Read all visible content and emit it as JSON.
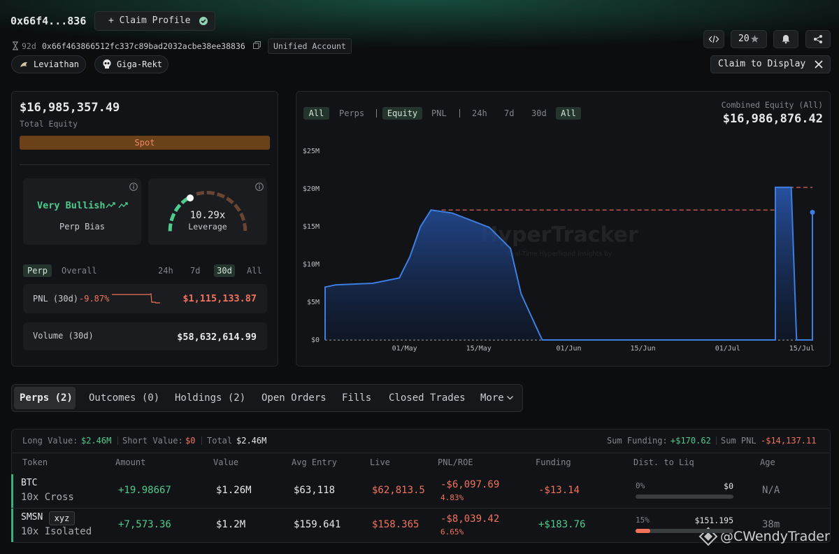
{
  "header": {
    "short_address": "0x66f4...836",
    "claim_profile": "+ Claim Profile",
    "age": "92d",
    "address": "0x66f463866512fc337c89bad2032acbe38ee38836",
    "account_type": "Unified Account",
    "badges": [
      "Leviathan",
      "Giga-Rekt"
    ],
    "star_count": "20",
    "claim_display": "Claim to Display"
  },
  "summary": {
    "total_equity": "$16,985,357.49",
    "total_equity_label": "Total Equity",
    "spot_label": "Spot",
    "bias": "Very Bullish",
    "bias_label": "Perp Bias",
    "leverage": "10.29x",
    "leverage_label": "Leverage",
    "scope_tabs": [
      "Perp",
      "Overall"
    ],
    "period_tabs": [
      "24h",
      "7d",
      "30d",
      "All"
    ],
    "pnl_label": "PNL (30d)",
    "pnl_pct": "-9.87%",
    "pnl_value": "$1,115,133.87",
    "volume_label": "Volume (30d)",
    "volume_value": "$58,632,614.99"
  },
  "equity_panel": {
    "filter_tabs": [
      "All",
      "Perps"
    ],
    "metric_tabs": [
      "Equity",
      "PNL"
    ],
    "period_tabs": [
      "24h",
      "7d",
      "30d",
      "All"
    ],
    "combined_label": "Combined Equity (All)",
    "combined_value": "$16,986,876.42",
    "watermark": "HyperTracker",
    "watermark_sub": "Real-Time Hyperliquid Insights by"
  },
  "chart_data": {
    "type": "area",
    "color": "#3d7ee0",
    "x": [
      "04-16",
      "04-16",
      "04-18",
      "04-25",
      "04-30",
      "05-02",
      "05-04",
      "05-06",
      "05-10",
      "05-17",
      "05-21",
      "05-23",
      "05-26",
      "05-27",
      "07-10",
      "07-10",
      "07-13",
      "07-14",
      "07-17",
      "07-17"
    ],
    "values": [
      0,
      7.0,
      7.3,
      7.5,
      8.2,
      11.0,
      15.0,
      17.2,
      16.8,
      14.9,
      12.1,
      6.1,
      1.5,
      0,
      0,
      20.2,
      20.2,
      0,
      0,
      16.9
    ],
    "xlim": [
      "04-16",
      "07-17"
    ],
    "xticks": [
      {
        "value": "05-01",
        "label": "01/May"
      },
      {
        "value": "05-15",
        "label": "15/May"
      },
      {
        "value": "06-01",
        "label": "01/Jun"
      },
      {
        "value": "06-15",
        "label": "15/Jun"
      },
      {
        "value": "07-01",
        "label": "01/Jul"
      },
      {
        "value": "07-15",
        "label": "15/Jul"
      }
    ],
    "ylim": [
      0,
      25
    ],
    "yticks": [
      {
        "value": 0,
        "label": "$0"
      },
      {
        "value": 5,
        "label": "$5M"
      },
      {
        "value": 10,
        "label": "$10M"
      },
      {
        "value": 15,
        "label": "$15M"
      },
      {
        "value": 20,
        "label": "$20M"
      },
      {
        "value": 25,
        "label": "$25M"
      }
    ],
    "grid": false,
    "reference_color": "#c0544a",
    "reference_lines": [
      {
        "value": 17.2,
        "from": "05-08",
        "to": "07-10"
      },
      {
        "value": 20.2,
        "from": "07-10",
        "to": "07-17"
      }
    ]
  },
  "tabs": [
    "Perps (2)",
    "Outcomes (0)",
    "Holdings (2)",
    "Open Orders",
    "Fills",
    "Closed Trades",
    "More"
  ],
  "positions": {
    "long_label": "Long Value:",
    "long_value": "$2.46M",
    "short_label": "Short Value:",
    "short_value": "$0",
    "total_label": "Total",
    "total_value": "$2.46M",
    "funding_label": "Sum Funding:",
    "funding_value": "+$170.62",
    "pnl_label": "Sum PNL",
    "pnl_value": "-$14,137.11",
    "columns": [
      "Token",
      "Amount",
      "Value",
      "Avg Entry",
      "Live",
      "PNL/ROE",
      "Funding",
      "Dist. to Liq",
      "Age"
    ],
    "rows": [
      {
        "token": "BTC",
        "leverage": "10x Cross",
        "amount": "+19.98667",
        "value": "$1.26M",
        "avg_entry": "$63,118",
        "live": "$62,813.5",
        "pnl": "-$6,097.69",
        "roe": "4.83%",
        "funding": "-$13.14",
        "dist": "0%",
        "liq_price": "$0",
        "age": "N/A"
      },
      {
        "token": "SMSN",
        "tag": "xyz",
        "leverage": "10x Isolated",
        "amount": "+7,573.36",
        "value": "$1.2M",
        "avg_entry": "$159.641",
        "live": "$158.365",
        "pnl": "-$8,039.42",
        "roe": "6.65%",
        "funding": "+$183.76",
        "dist": "15%",
        "liq_price": "$151.195",
        "age": "38m"
      }
    ]
  },
  "overlay_watermark": "@CWendyTrader"
}
